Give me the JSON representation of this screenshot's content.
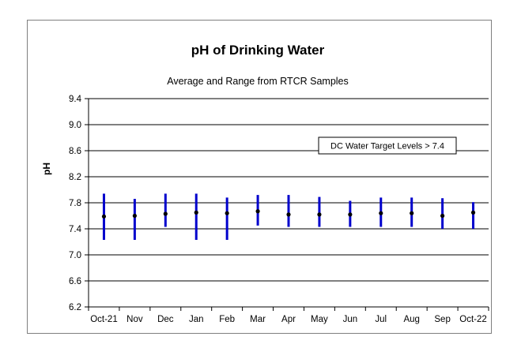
{
  "chart_data": {
    "type": "range",
    "title": "pH of Drinking Water",
    "subtitle": "Average and Range from RTCR Samples",
    "xlabel": "",
    "ylabel": "pH",
    "ylim": [
      6.2,
      9.4
    ],
    "yticks": [
      "9.4",
      "9.0",
      "8.6",
      "8.2",
      "7.8",
      "7.4",
      "7.0",
      "6.6",
      "6.2"
    ],
    "grid": "horizontal",
    "categories": [
      "Oct-21",
      "Nov",
      "Dec",
      "Jan",
      "Feb",
      "Mar",
      "Apr",
      "May",
      "Jun",
      "Jul",
      "Aug",
      "Sep",
      "Oct-22"
    ],
    "series": [
      {
        "values": [
          7.59,
          7.6,
          7.63,
          7.65,
          7.64,
          7.67,
          7.62,
          7.62,
          7.62,
          7.64,
          7.64,
          7.6,
          7.65
        ]
      },
      {
        "values": [
          7.23,
          7.23,
          7.43,
          7.23,
          7.23,
          7.45,
          7.43,
          7.43,
          7.43,
          7.43,
          7.43,
          7.4,
          7.4
        ]
      },
      {
        "values": [
          7.94,
          7.86,
          7.94,
          7.94,
          7.88,
          7.92,
          7.92,
          7.89,
          7.83,
          7.88,
          7.88,
          7.87,
          7.81
        ]
      }
    ],
    "annotation": "DC Water Target Levels  > 7.4",
    "target_line": 7.4,
    "colors": {
      "range_bar": "#0000cc",
      "mean_point": "#000000",
      "gridline": "#000000"
    }
  }
}
